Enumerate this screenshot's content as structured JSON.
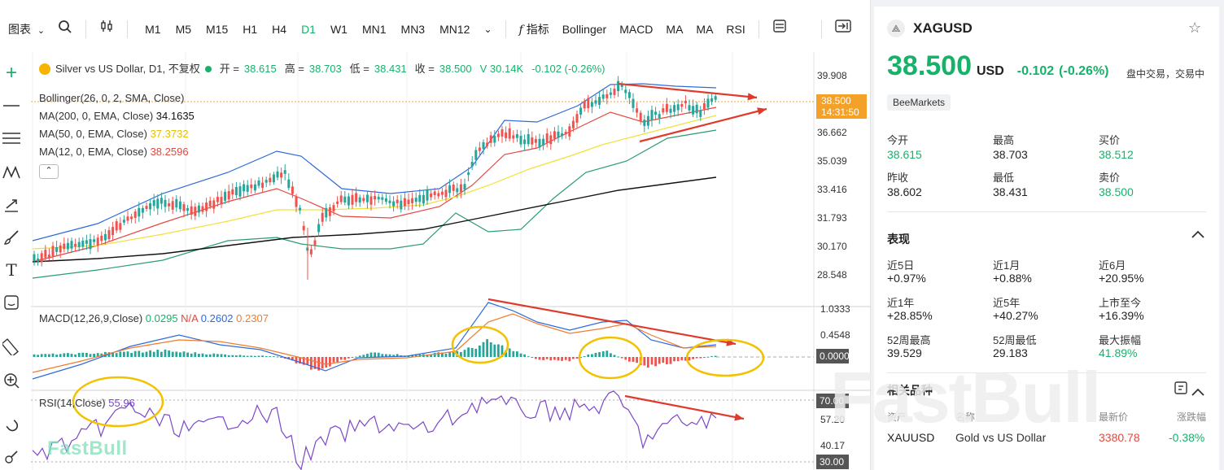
{
  "toolbar": {
    "chart_label": "图表",
    "timeframes": [
      "M1",
      "M5",
      "M15",
      "H1",
      "H4",
      "D1",
      "W1",
      "MN1",
      "MN3",
      "MN12"
    ],
    "active_timeframe": "D1",
    "indicators_label": "指标",
    "indicator_buttons": [
      "Bollinger",
      "MACD",
      "MA",
      "MA",
      "RSI"
    ]
  },
  "legend": {
    "title": "Silver vs US Dollar, D1, 不复权",
    "open_label": "开 =",
    "open": "38.615",
    "high_label": "高 =",
    "high": "38.703",
    "low_label": "低 =",
    "low": "38.431",
    "close_label": "收 =",
    "close": "38.500",
    "volume": "V 30.14K",
    "change": "-0.102 (-0.26%)",
    "bollinger": "Bollinger(26, 0, 2, SMA, Close)",
    "ma200": "MA(200, 0, EMA, Close)",
    "ma200_val": "34.1635",
    "ma50": "MA(50, 0, EMA, Close)",
    "ma50_val": "37.3732",
    "ma12": "MA(12, 0, EMA, Close)",
    "ma12_val": "38.2596"
  },
  "macd_legend": {
    "label": "MACD(12,26,9,Close)",
    "v1": "0.0295",
    "v2": "N/A",
    "v3": "0.2602",
    "v4": "0.2307"
  },
  "rsi_legend": {
    "label": "RSI(14,Close)",
    "value": "55.96"
  },
  "price_axis": [
    "39.908",
    "36.662",
    "35.039",
    "33.416",
    "31.793",
    "30.170",
    "28.548"
  ],
  "price_tag": {
    "price": "38.500",
    "time": "14:31:50"
  },
  "macd_axis": [
    "1.0333",
    "0.4548"
  ],
  "macd_tag": "0.0000",
  "rsi_axis": [
    "57.20",
    "40.17"
  ],
  "rsi_tags": [
    "70.00",
    "30.00"
  ],
  "watermark": "FastBull",
  "info": {
    "symbol": "XAGUSD",
    "price": "38.500",
    "currency": "USD",
    "change": "-0.102",
    "change_pct": "(-0.26%)",
    "status": "盘中交易，交易中",
    "source": "BeeMarkets",
    "stats": [
      {
        "label": "今开",
        "value": "38.615"
      },
      {
        "label": "最高",
        "value": "38.703"
      },
      {
        "label": "买价",
        "value": "38.512"
      },
      {
        "label": "昨收",
        "value": "38.602"
      },
      {
        "label": "最低",
        "value": "38.431"
      },
      {
        "label": "卖价",
        "value": "38.500"
      }
    ],
    "performance_title": "表现",
    "performance": [
      {
        "label": "近5日",
        "value": "+0.97%"
      },
      {
        "label": "近1月",
        "value": "+0.88%"
      },
      {
        "label": "近6月",
        "value": "+20.95%"
      },
      {
        "label": "近1年",
        "value": "+28.85%"
      },
      {
        "label": "近5年",
        "value": "+40.27%"
      },
      {
        "label": "上市至今",
        "value": "+16.39%"
      },
      {
        "label": "52周最高",
        "value": "39.529"
      },
      {
        "label": "52周最低",
        "value": "29.183"
      },
      {
        "label": "最大振幅",
        "value": "41.89%"
      }
    ],
    "related_title": "相关品种",
    "related_headers": [
      "资产",
      "名称",
      "最新价",
      "涨跌幅"
    ],
    "related_rows": [
      {
        "asset": "XAUUSD",
        "name": "Gold vs US Dollar",
        "price": "3380.78",
        "change": "-0.38%"
      }
    ]
  },
  "colors": {
    "up": "#26a69a",
    "down": "#ef5350",
    "bb_band": "#2f6bdc",
    "ma200": "#111111",
    "ma50": "#f2e03c",
    "ma12": "#e5483f",
    "annotation_arrow": "#e03a2c",
    "annotation_circle": "#f2c200",
    "green_text": "#17b26a",
    "price_tag": "#f4a128"
  }
}
